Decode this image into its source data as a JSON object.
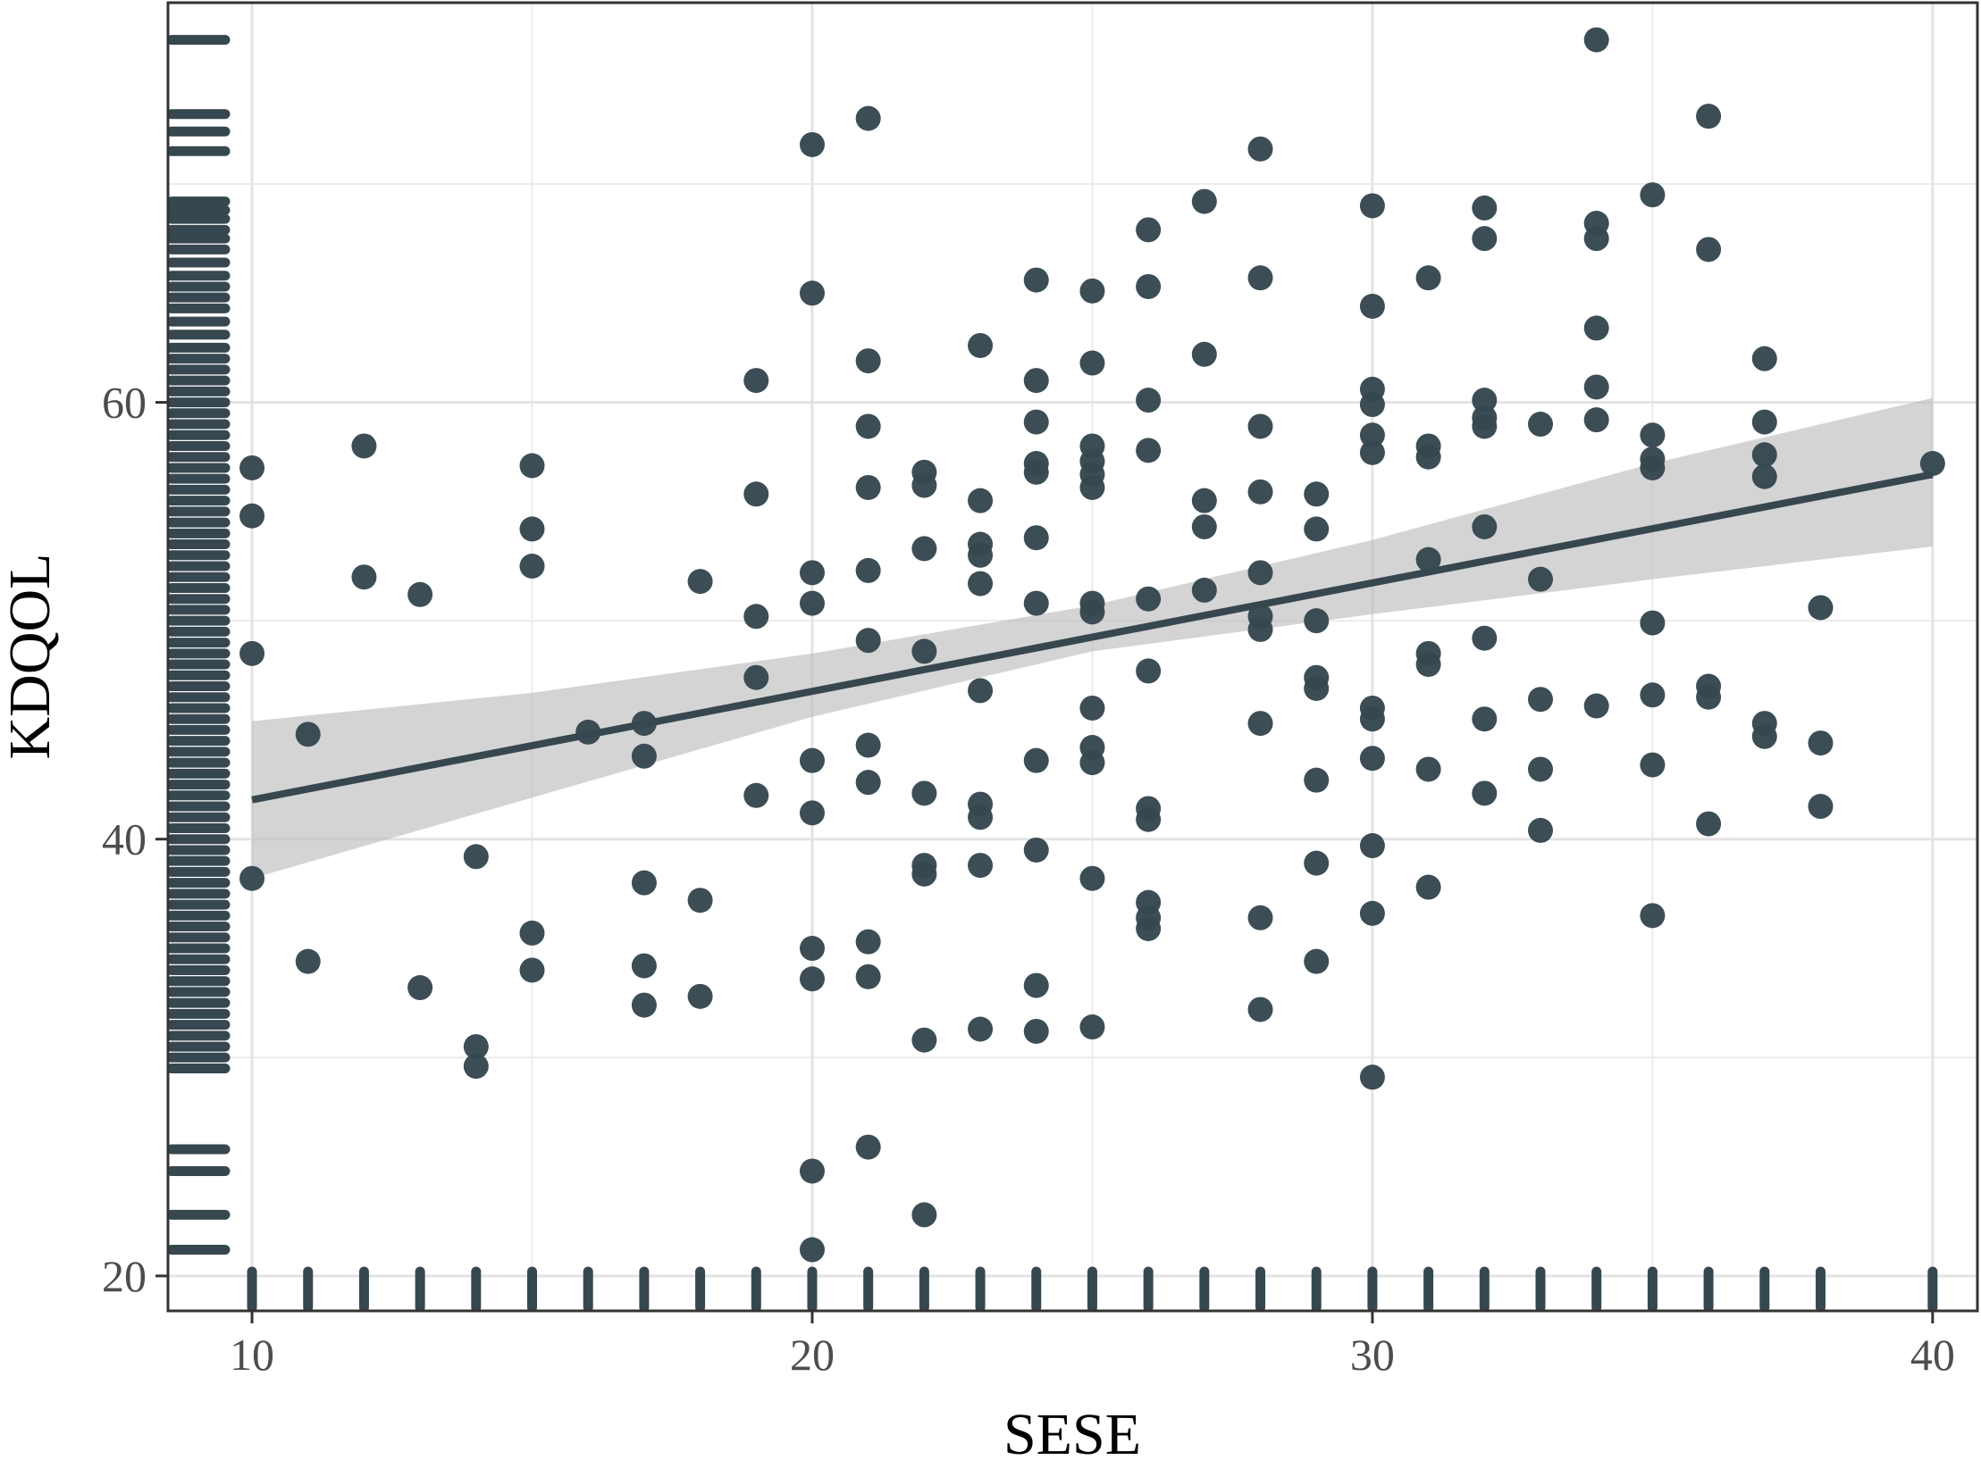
{
  "chart_data": {
    "type": "scatter",
    "xlabel": "SESE",
    "ylabel": "KDQOL",
    "xlim": [
      8.5,
      40.8
    ],
    "ylim": [
      18.4,
      78.3
    ],
    "x_ticks": [
      10,
      20,
      30,
      40
    ],
    "y_ticks": [
      20,
      40,
      60
    ],
    "grid": true,
    "points_color": "#36474f",
    "band_color": "#bdbdbd",
    "points": [
      [
        10,
        57
      ],
      [
        10,
        54.8
      ],
      [
        10,
        48.5
      ],
      [
        10,
        38.2
      ],
      [
        11,
        44.8
      ],
      [
        11,
        34.4
      ],
      [
        12,
        58
      ],
      [
        12,
        52
      ],
      [
        13,
        51.2
      ],
      [
        13,
        33.2
      ],
      [
        14,
        39.2
      ],
      [
        14,
        30.5
      ],
      [
        14,
        29.6
      ],
      [
        15,
        57.1
      ],
      [
        15,
        54.2
      ],
      [
        15,
        52.5
      ],
      [
        15,
        35.7
      ],
      [
        15,
        34
      ],
      [
        16,
        44.9
      ],
      [
        17,
        45.3
      ],
      [
        17,
        43.8
      ],
      [
        17,
        38
      ],
      [
        17,
        34.2
      ],
      [
        17,
        32.4
      ],
      [
        18,
        51.8
      ],
      [
        18,
        37.2
      ],
      [
        18,
        32.8
      ],
      [
        19,
        61
      ],
      [
        19,
        55.8
      ],
      [
        19,
        50.2
      ],
      [
        19,
        47.4
      ],
      [
        19,
        42
      ],
      [
        20,
        71.8
      ],
      [
        20,
        65
      ],
      [
        20,
        52.2
      ],
      [
        20,
        50.8
      ],
      [
        20,
        43.6
      ],
      [
        20,
        41.2
      ],
      [
        20,
        35
      ],
      [
        20,
        33.6
      ],
      [
        20,
        24.8
      ],
      [
        20,
        21.2
      ],
      [
        21,
        73
      ],
      [
        21,
        61.9
      ],
      [
        21,
        58.9
      ],
      [
        21,
        56.1
      ],
      [
        21,
        52.3
      ],
      [
        21,
        49.1
      ],
      [
        21,
        44.3
      ],
      [
        21,
        42.6
      ],
      [
        21,
        35.3
      ],
      [
        21,
        33.7
      ],
      [
        21,
        25.9
      ],
      [
        22,
        56.8
      ],
      [
        22,
        56.2
      ],
      [
        22,
        53.3
      ],
      [
        22,
        48.6
      ],
      [
        22,
        42.1
      ],
      [
        22,
        38.8
      ],
      [
        22,
        38.4
      ],
      [
        22,
        30.8
      ],
      [
        22,
        22.8
      ],
      [
        23,
        62.6
      ],
      [
        23,
        55.5
      ],
      [
        23,
        53.5
      ],
      [
        23,
        53
      ],
      [
        23,
        51.7
      ],
      [
        23,
        46.8
      ],
      [
        23,
        41.6
      ],
      [
        23,
        41
      ],
      [
        23,
        38.8
      ],
      [
        23,
        31.3
      ],
      [
        24,
        65.6
      ],
      [
        24,
        61
      ],
      [
        24,
        59.1
      ],
      [
        24,
        57.2
      ],
      [
        24,
        56.8
      ],
      [
        24,
        53.8
      ],
      [
        24,
        50.8
      ],
      [
        24,
        43.6
      ],
      [
        24,
        39.5
      ],
      [
        24,
        33.3
      ],
      [
        24,
        31.2
      ],
      [
        25,
        65.1
      ],
      [
        25,
        61.8
      ],
      [
        25,
        58
      ],
      [
        25,
        57.3
      ],
      [
        25,
        56.7
      ],
      [
        25,
        56.1
      ],
      [
        25,
        50.8
      ],
      [
        25,
        50.4
      ],
      [
        25,
        46
      ],
      [
        25,
        44.2
      ],
      [
        25,
        43.5
      ],
      [
        25,
        38.2
      ],
      [
        25,
        31.4
      ],
      [
        26,
        67.9
      ],
      [
        26,
        65.3
      ],
      [
        26,
        60.1
      ],
      [
        26,
        57.8
      ],
      [
        26,
        51
      ],
      [
        26,
        47.7
      ],
      [
        26,
        41.4
      ],
      [
        26,
        40.9
      ],
      [
        26,
        37.1
      ],
      [
        26,
        36.4
      ],
      [
        26,
        35.9
      ],
      [
        27,
        69.2
      ],
      [
        27,
        62.2
      ],
      [
        27,
        55.5
      ],
      [
        27,
        54.3
      ],
      [
        27,
        51.4
      ],
      [
        28,
        71.6
      ],
      [
        28,
        65.7
      ],
      [
        28,
        58.9
      ],
      [
        28,
        55.9
      ],
      [
        28,
        52.2
      ],
      [
        28,
        50.2
      ],
      [
        28,
        49.6
      ],
      [
        28,
        45.3
      ],
      [
        28,
        36.4
      ],
      [
        28,
        32.2
      ],
      [
        29,
        55.8
      ],
      [
        29,
        54.2
      ],
      [
        29,
        50
      ],
      [
        29,
        47.4
      ],
      [
        29,
        46.9
      ],
      [
        29,
        42.7
      ],
      [
        29,
        38.9
      ],
      [
        29,
        34.4
      ],
      [
        30,
        69
      ],
      [
        30,
        64.4
      ],
      [
        30,
        60.6
      ],
      [
        30,
        59.9
      ],
      [
        30,
        58.5
      ],
      [
        30,
        57.7
      ],
      [
        30,
        46
      ],
      [
        30,
        45.5
      ],
      [
        30,
        43.7
      ],
      [
        30,
        39.7
      ],
      [
        30,
        36.6
      ],
      [
        30,
        29.1
      ],
      [
        31,
        65.7
      ],
      [
        31,
        58
      ],
      [
        31,
        57.5
      ],
      [
        31,
        52.8
      ],
      [
        31,
        48.5
      ],
      [
        31,
        48
      ],
      [
        31,
        43.2
      ],
      [
        31,
        37.8
      ],
      [
        32,
        68.9
      ],
      [
        32,
        67.5
      ],
      [
        32,
        60.1
      ],
      [
        32,
        59.3
      ],
      [
        32,
        58.9
      ],
      [
        32,
        54.3
      ],
      [
        32,
        49.2
      ],
      [
        32,
        45.5
      ],
      [
        32,
        42.1
      ],
      [
        33,
        59
      ],
      [
        33,
        51.9
      ],
      [
        33,
        46.4
      ],
      [
        33,
        43.2
      ],
      [
        33,
        40.4
      ],
      [
        34,
        76.6
      ],
      [
        34,
        68.2
      ],
      [
        34,
        67.5
      ],
      [
        34,
        63.4
      ],
      [
        34,
        60.7
      ],
      [
        34,
        59.2
      ],
      [
        34,
        46.1
      ],
      [
        35,
        69.5
      ],
      [
        35,
        58.5
      ],
      [
        35,
        57.4
      ],
      [
        35,
        57
      ],
      [
        35,
        49.9
      ],
      [
        35,
        46.6
      ],
      [
        35,
        43.4
      ],
      [
        35,
        36.5
      ],
      [
        36,
        73.1
      ],
      [
        36,
        67
      ],
      [
        36,
        47
      ],
      [
        36,
        46.5
      ],
      [
        36,
        40.7
      ],
      [
        37,
        62
      ],
      [
        37,
        59.1
      ],
      [
        37,
        57.6
      ],
      [
        37,
        56.6
      ],
      [
        37,
        45.3
      ],
      [
        37,
        44.7
      ],
      [
        38,
        50.6
      ],
      [
        38,
        44.4
      ],
      [
        38,
        41.5
      ],
      [
        40,
        57.2
      ]
    ],
    "fit_line": [
      [
        10,
        41.8
      ],
      [
        40,
        56.7
      ]
    ],
    "confidence_band": {
      "x": [
        10,
        15,
        20,
        25,
        30,
        35,
        40
      ],
      "lower": [
        38.2,
        41.9,
        45.6,
        48.6,
        50.3,
        51.9,
        53.4
      ],
      "upper": [
        45.4,
        46.7,
        48.5,
        50.7,
        53.7,
        57.2,
        60.2
      ]
    },
    "rug_y": [
      76.6,
      73.2,
      72.4,
      71.5,
      69.2,
      68.8,
      68.4,
      67.9,
      67.5,
      67.0,
      66.4,
      65.8,
      65.3,
      64.8,
      64.3,
      63.7,
      63.1,
      62.5,
      62.0,
      61.5,
      61.0,
      60.5,
      60.0,
      59.5,
      59.0,
      58.5,
      58.0,
      57.5,
      57.0,
      56.5,
      56.0,
      55.5,
      55.0,
      54.5,
      54.0,
      53.5,
      53.0,
      52.5,
      52.0,
      51.5,
      51.0,
      50.5,
      50.0,
      49.5,
      49.0,
      48.5,
      48.0,
      47.5,
      47.0,
      46.5,
      46.0,
      45.5,
      45.0,
      44.5,
      44.0,
      43.5,
      43.0,
      42.5,
      42.0,
      41.5,
      41.0,
      40.5,
      40.0,
      39.5,
      39.0,
      38.5,
      38.0,
      37.5,
      37.0,
      36.5,
      36.0,
      35.5,
      35.0,
      34.5,
      34.0,
      33.5,
      33.0,
      32.5,
      32.0,
      31.5,
      31.0,
      30.5,
      30.0,
      29.5,
      25.8,
      24.8,
      22.8,
      21.2
    ],
    "rug_x": [
      10,
      11,
      12,
      13,
      14,
      15,
      16,
      17,
      18,
      19,
      20,
      21,
      22,
      23,
      24,
      25,
      26,
      27,
      28,
      29,
      30,
      31,
      32,
      33,
      34,
      35,
      36,
      37,
      38,
      40
    ]
  }
}
